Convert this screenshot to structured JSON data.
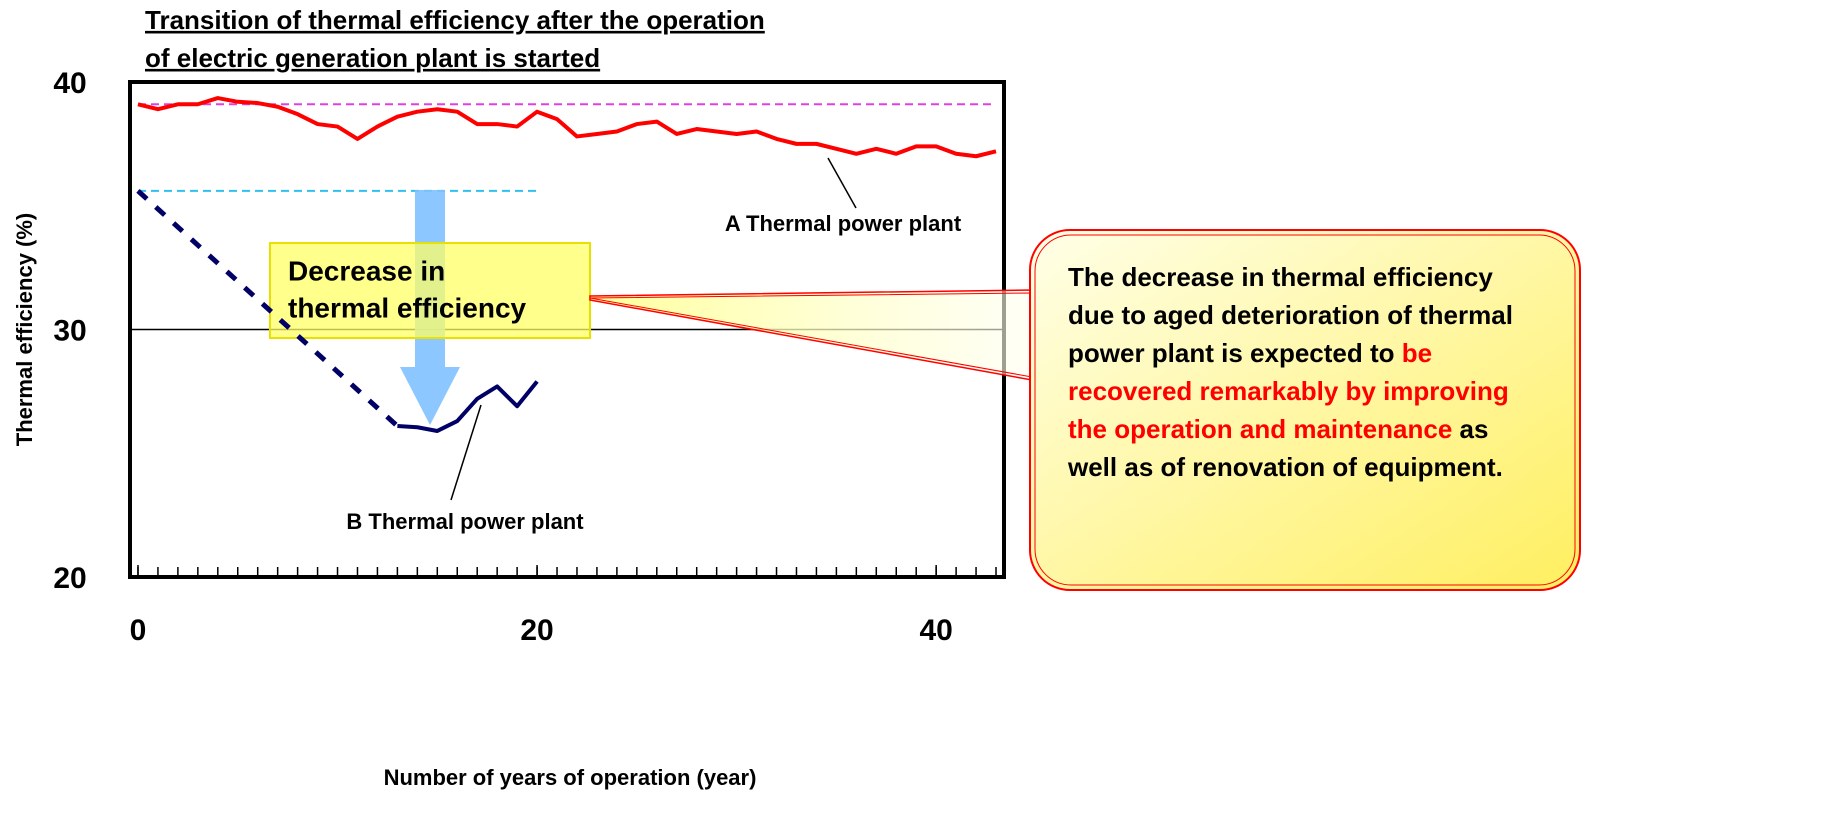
{
  "chart_data": {
    "type": "line",
    "title": [
      "Transition of thermal efficiency after the operation",
      "of electric generation plant is started"
    ],
    "xlabel": "Number of years of operation (year)",
    "ylabel": "Thermal efficiency (%)",
    "xlim": [
      -0.4,
      43.4
    ],
    "ylim": [
      20,
      40
    ],
    "xticks": [
      0,
      20,
      40
    ],
    "yticks": [
      20,
      30,
      40
    ],
    "grid": true,
    "series": [
      {
        "color": "#ff0000",
        "style": "solid",
        "x": [
          0,
          1,
          2,
          3,
          4,
          5,
          6,
          7,
          8,
          9,
          10,
          11,
          12,
          13,
          14,
          15,
          16,
          17,
          18,
          19,
          20,
          21,
          22,
          23,
          24,
          25,
          26,
          27,
          28,
          29,
          30,
          31,
          32,
          33,
          34,
          35,
          36,
          37,
          38,
          39,
          40,
          41,
          42,
          43
        ],
        "values": [
          39.1,
          38.9,
          39.1,
          39.1,
          39.35,
          39.2,
          39.15,
          39.0,
          38.7,
          38.3,
          38.2,
          37.7,
          38.2,
          38.6,
          38.8,
          38.9,
          38.8,
          38.3,
          38.3,
          38.2,
          38.8,
          38.5,
          37.8,
          37.9,
          38.0,
          38.3,
          38.4,
          37.9,
          38.1,
          38.0,
          37.9,
          38.0,
          37.7,
          37.5,
          37.5,
          37.3,
          37.1,
          37.3,
          37.1,
          37.4,
          37.4,
          37.1,
          37.0,
          37.2
        ]
      },
      {
        "color": "#000066",
        "style": "solid",
        "x": [
          13,
          14,
          15,
          16,
          17,
          18,
          19,
          20
        ],
        "values": [
          26.1,
          26.05,
          25.9,
          26.3,
          27.2,
          27.7,
          26.9,
          27.9
        ]
      },
      {
        "color": "#000066",
        "style": "dashed",
        "x": [
          0,
          13
        ],
        "values": [
          35.6,
          26.1
        ]
      }
    ],
    "reference_lines": [
      {
        "y": 39.1,
        "x": [
          0,
          43
        ],
        "color": "#e040e0"
      },
      {
        "y": 35.6,
        "x": [
          0,
          20
        ],
        "color": "#30c0f0"
      }
    ],
    "annotations": [
      "A Thermal power plant",
      "B Thermal power plant"
    ],
    "highlight": [
      "Decrease in",
      "thermal efficiency"
    ],
    "callout": [
      "The decrease in thermal efficiency due to aged deterioration of thermal power plant is expected to ",
      "be recovered remarkably by improving the operation and maintenance",
      " as well as of renovation of equipment."
    ]
  }
}
